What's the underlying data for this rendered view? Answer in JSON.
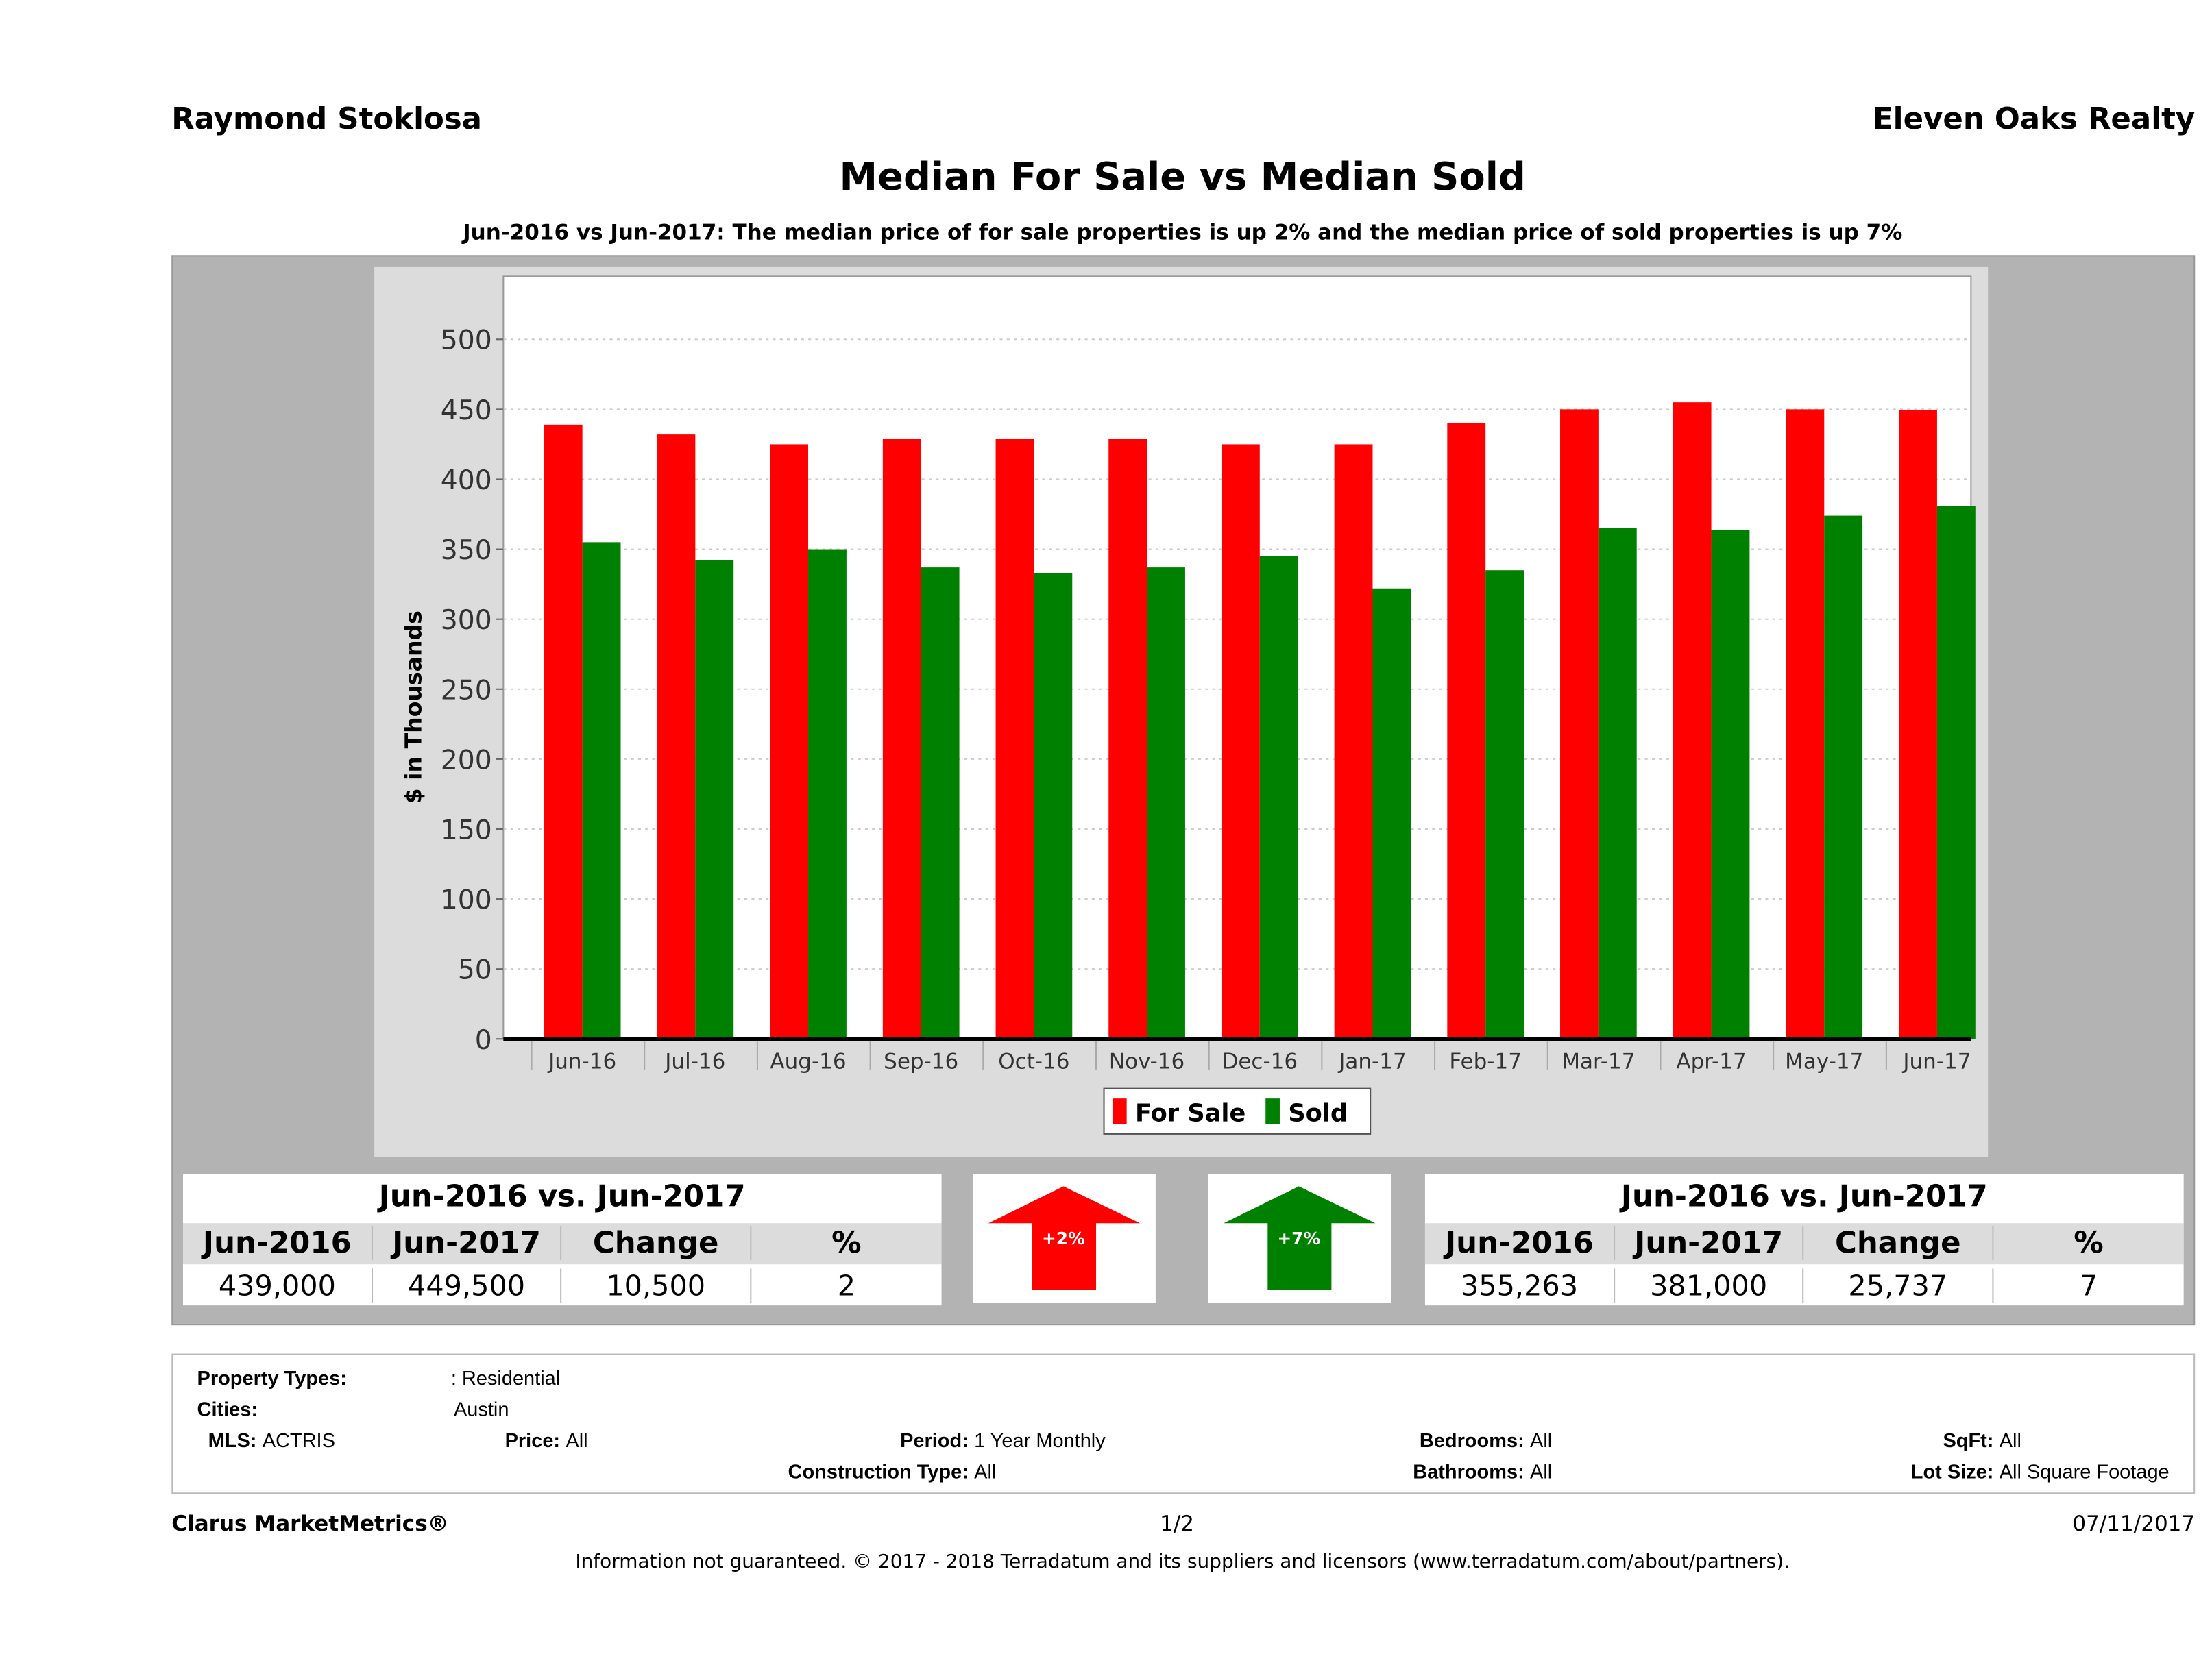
{
  "header": {
    "agent": "Raymond Stoklosa",
    "brokerage": "Eleven Oaks Realty"
  },
  "chart_data": {
    "type": "bar",
    "title": "Median For Sale vs Median Sold",
    "subtitle": "Jun-2016 vs Jun-2017: The median price of for sale properties is up 2% and the median price of sold properties is up 7%",
    "xlabel": "",
    "ylabel": "$ in Thousands",
    "ylim": [
      0,
      545
    ],
    "yticks": [
      0,
      50,
      100,
      150,
      200,
      250,
      300,
      350,
      400,
      450,
      500
    ],
    "grid": true,
    "legend_position": "bottom",
    "categories": [
      "Jun-16",
      "Jul-16",
      "Aug-16",
      "Sep-16",
      "Oct-16",
      "Nov-16",
      "Dec-16",
      "Jan-17",
      "Feb-17",
      "Mar-17",
      "Apr-17",
      "May-17",
      "Jun-17"
    ],
    "series": [
      {
        "name": "For Sale",
        "color": "#ff0000",
        "values": [
          439,
          432,
          425,
          429,
          429,
          429,
          425,
          425,
          440,
          450,
          455,
          450,
          449.5
        ]
      },
      {
        "name": "Sold",
        "color": "#008000",
        "values": [
          355,
          342,
          350,
          337,
          333,
          337,
          345,
          322,
          335,
          365,
          364,
          374,
          381
        ]
      }
    ]
  },
  "left_table": {
    "title": "Jun-2016 vs. Jun-2017",
    "headers": [
      "Jun-2016",
      "Jun-2017",
      "Change",
      "%"
    ],
    "values": [
      "439,000",
      "449,500",
      "10,500",
      "2"
    ]
  },
  "right_table": {
    "title": "Jun-2016 vs. Jun-2017",
    "headers": [
      "Jun-2016",
      "Jun-2017",
      "Change",
      "%"
    ],
    "values": [
      "355,263",
      "381,000",
      "25,737",
      "7"
    ]
  },
  "arrows": {
    "for_sale": {
      "label": "+2%",
      "color": "#ff0000",
      "icon": "arrow-up"
    },
    "sold": {
      "label": "+7%",
      "color": "#008000",
      "icon": "arrow-up"
    }
  },
  "filters": {
    "property_types_label": "Property Types:",
    "property_types": ": Residential",
    "cities_label": "Cities:",
    "cities": "Austin",
    "mls_label": "MLS:",
    "mls": "ACTRIS",
    "price_label": "Price:",
    "price": "All",
    "period_label": "Period:",
    "period": "1 Year Monthly",
    "construction_label": "Construction Type:",
    "construction": "All",
    "bedrooms_label": "Bedrooms:",
    "bedrooms": "All",
    "bathrooms_label": "Bathrooms:",
    "bathrooms": "All",
    "sqft_label": "SqFt:",
    "sqft": "All",
    "lot_label": "Lot Size:",
    "lot": "All Square Footage"
  },
  "footer": {
    "brand": "Clarus MarketMetrics®",
    "page": "1/2",
    "date": "07/11/2017",
    "disclaimer": "Information not guaranteed. © 2017 - 2018 Terradatum and its suppliers and licensors (www.terradatum.com/about/partners)."
  }
}
